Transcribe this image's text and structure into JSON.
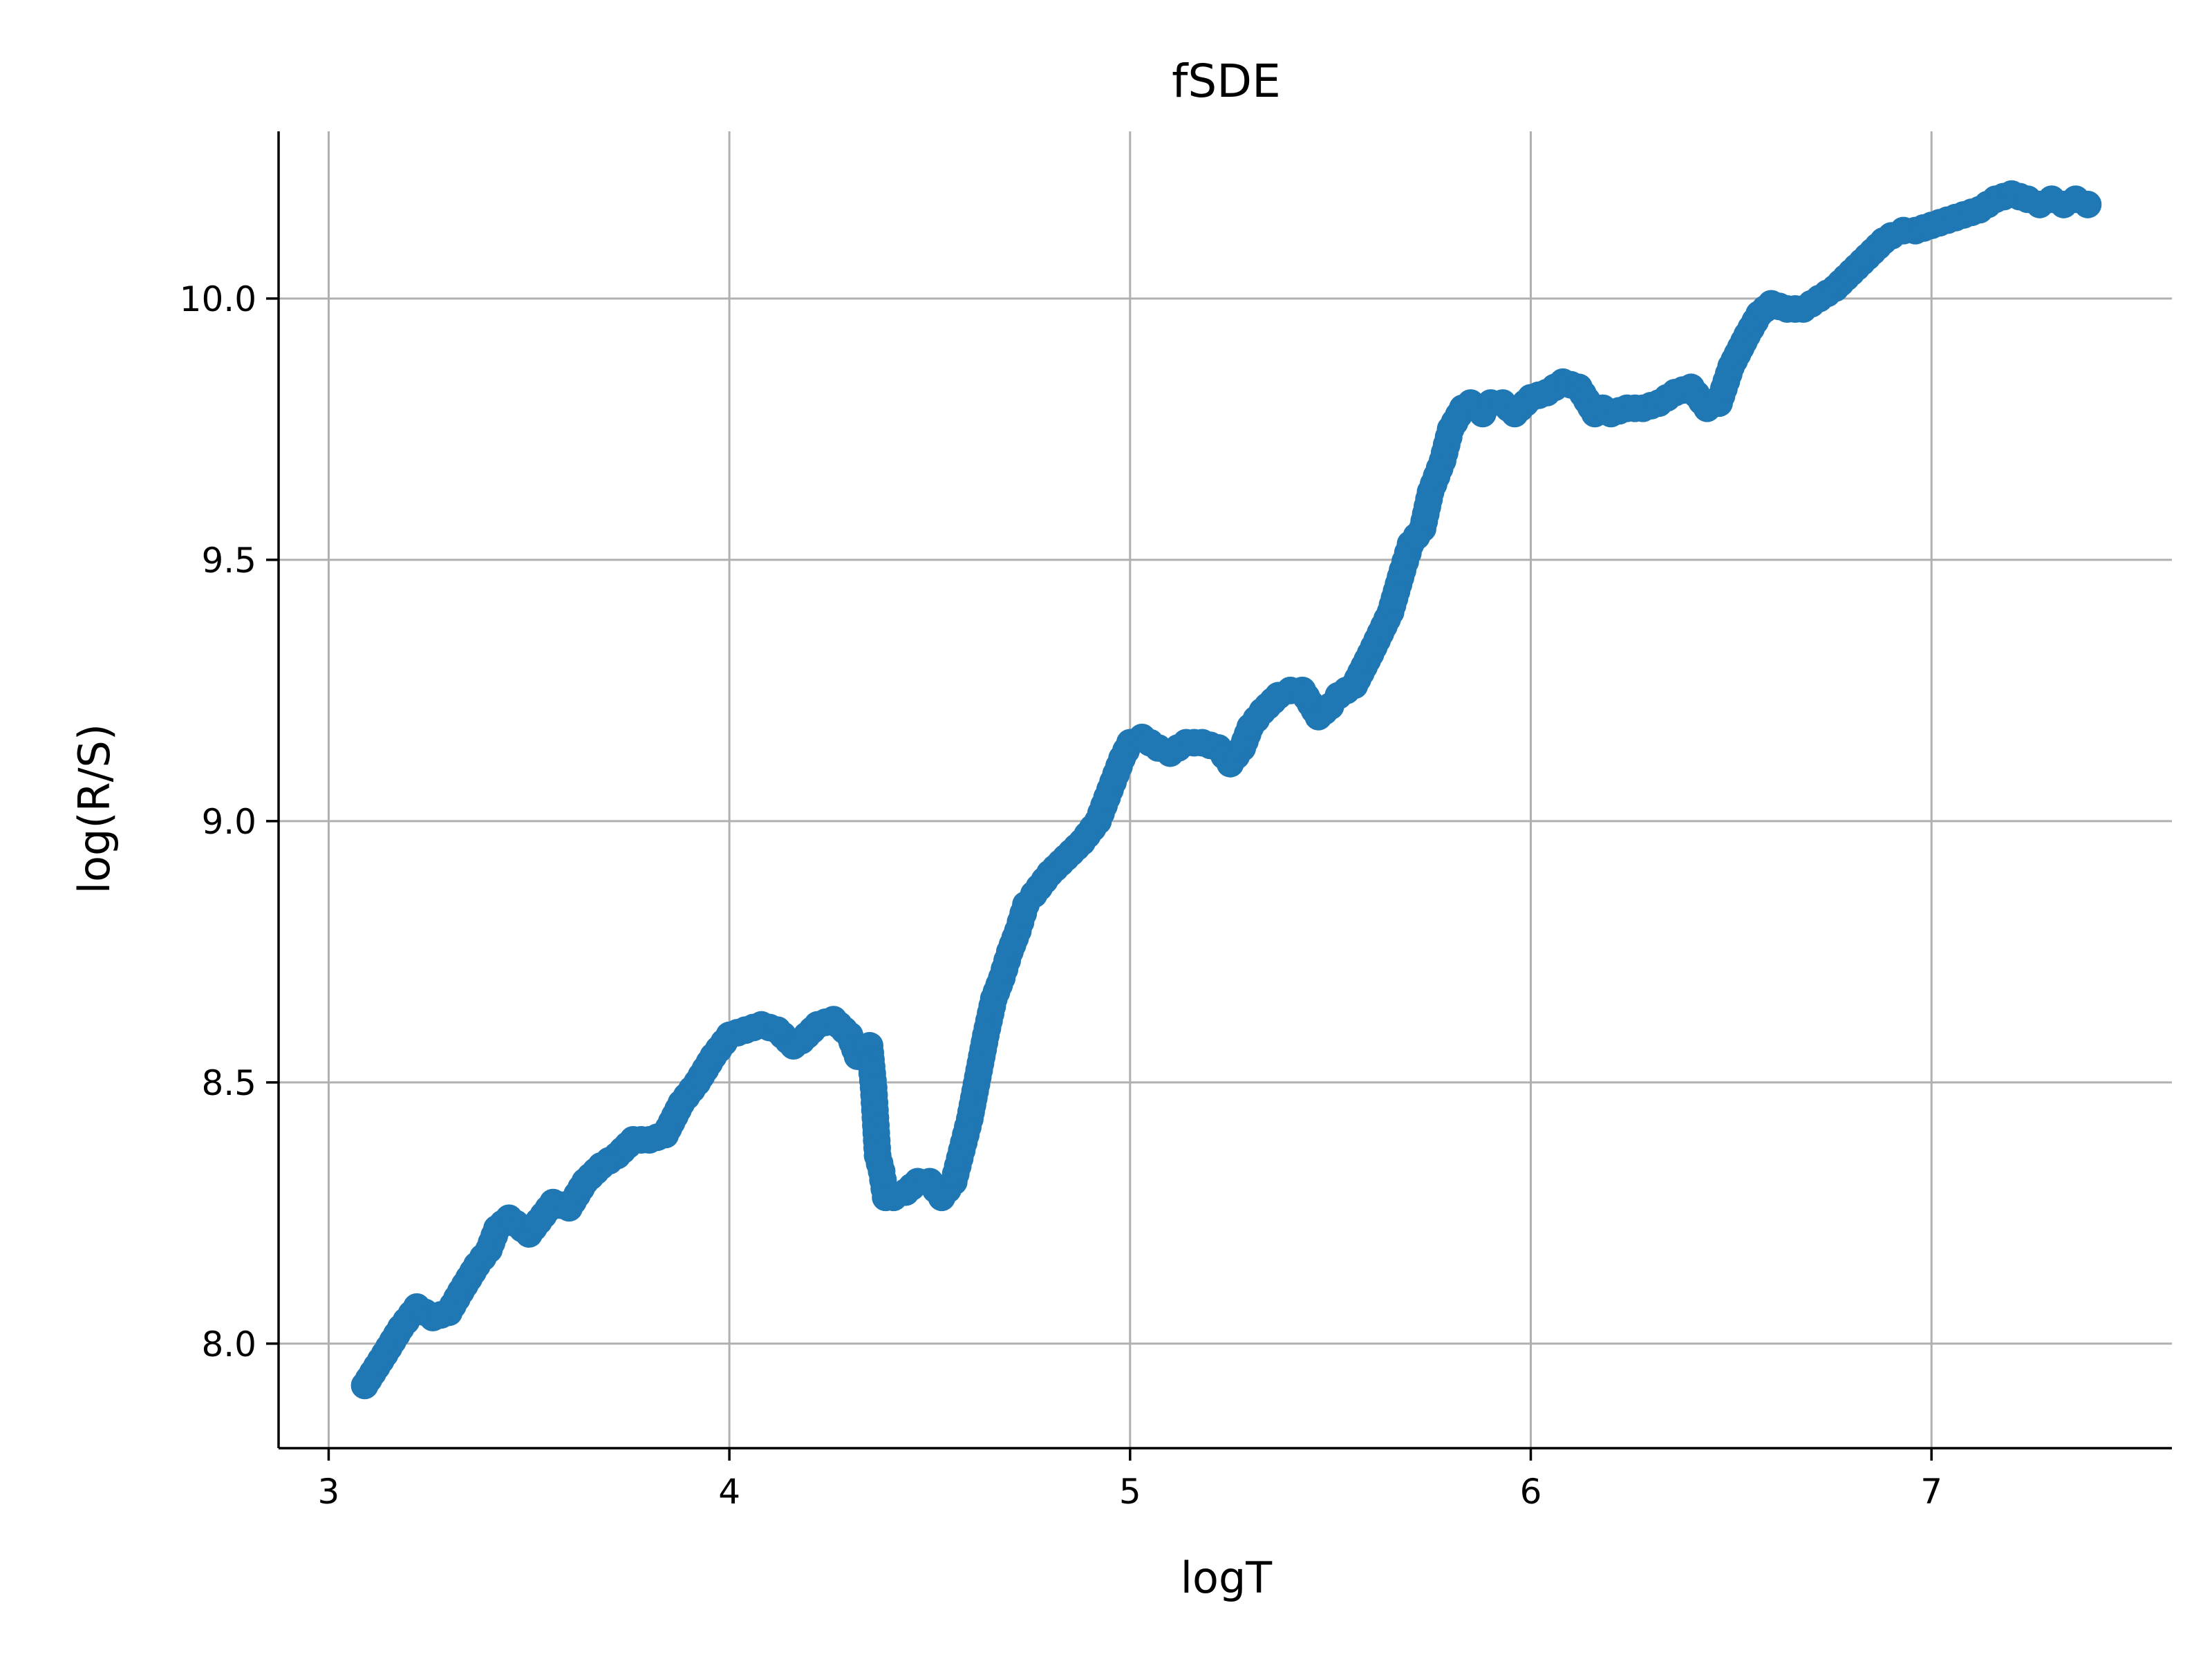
{
  "chart_data": {
    "type": "scatter",
    "title": "fSDE",
    "xlabel": "logT",
    "ylabel": "log(R/S)",
    "xlim": [
      2.875,
      7.6
    ],
    "ylim": [
      7.8,
      10.32
    ],
    "xticks": [
      3,
      4,
      5,
      6,
      7
    ],
    "xtick_labels": [
      "3",
      "4",
      "5",
      "6",
      "7"
    ],
    "yticks": [
      8.0,
      8.5,
      9.0,
      9.5,
      10.0
    ],
    "ytick_labels": [
      "8.0",
      "8.5",
      "9.0",
      "9.5",
      "10.0"
    ],
    "grid": true,
    "marker_color": "#1f77b4",
    "series": [
      {
        "x": [
          3.09,
          3.14,
          3.18,
          3.22,
          3.26,
          3.3,
          3.33,
          3.37,
          3.4,
          3.42,
          3.45,
          3.5,
          3.56,
          3.6,
          3.64,
          3.68,
          3.72,
          3.76,
          3.8,
          3.84,
          3.88,
          3.92,
          3.96,
          4.0,
          4.04,
          4.08,
          4.12,
          4.16,
          4.18,
          4.22,
          4.26,
          4.3,
          4.32,
          4.35,
          4.36,
          4.37,
          4.38,
          4.39,
          4.41,
          4.44,
          4.47,
          4.5,
          4.53,
          4.56,
          4.58,
          4.6,
          4.62,
          4.64,
          4.66,
          4.68,
          4.7,
          4.72,
          4.74,
          4.76,
          4.8,
          4.84,
          4.88,
          4.92,
          4.95,
          4.98,
          5.0,
          5.03,
          5.07,
          5.1,
          5.14,
          5.18,
          5.22,
          5.25,
          5.28,
          5.3,
          5.33,
          5.37,
          5.4,
          5.43,
          5.47,
          5.5,
          5.52,
          5.56,
          5.6,
          5.65,
          5.68,
          5.7,
          5.73,
          5.75,
          5.78,
          5.8,
          5.83,
          5.85,
          5.88,
          5.9,
          5.93,
          5.96,
          6.0,
          6.04,
          6.08,
          6.12,
          6.16,
          6.18,
          6.2,
          6.24,
          6.28,
          6.32,
          6.36,
          6.4,
          6.44,
          6.47,
          6.5,
          6.54,
          6.57,
          6.6,
          6.64,
          6.68,
          6.72,
          6.76,
          6.8,
          6.84,
          6.88,
          6.9,
          6.93,
          6.96,
          7.0,
          7.04,
          7.08,
          7.12,
          7.16,
          7.2,
          7.24,
          7.27,
          7.3,
          7.33,
          7.36,
          7.39
        ],
        "y": [
          7.92,
          7.98,
          8.03,
          8.07,
          8.05,
          8.06,
          8.1,
          8.15,
          8.18,
          8.22,
          8.24,
          8.21,
          8.27,
          8.26,
          8.31,
          8.34,
          8.36,
          8.39,
          8.39,
          8.4,
          8.46,
          8.5,
          8.55,
          8.59,
          8.6,
          8.61,
          8.6,
          8.57,
          8.58,
          8.61,
          8.62,
          8.59,
          8.55,
          8.57,
          8.49,
          8.36,
          8.33,
          8.28,
          8.28,
          8.29,
          8.31,
          8.31,
          8.28,
          8.31,
          8.37,
          8.43,
          8.51,
          8.59,
          8.66,
          8.7,
          8.75,
          8.79,
          8.84,
          8.86,
          8.9,
          8.93,
          8.96,
          9.0,
          9.06,
          9.12,
          9.15,
          9.16,
          9.14,
          9.13,
          9.15,
          9.15,
          9.14,
          9.11,
          9.14,
          9.18,
          9.21,
          9.24,
          9.25,
          9.25,
          9.2,
          9.22,
          9.24,
          9.26,
          9.32,
          9.4,
          9.48,
          9.53,
          9.56,
          9.63,
          9.69,
          9.75,
          9.79,
          9.8,
          9.78,
          9.8,
          9.8,
          9.78,
          9.81,
          9.82,
          9.84,
          9.83,
          9.78,
          9.79,
          9.78,
          9.79,
          9.79,
          9.8,
          9.82,
          9.83,
          9.79,
          9.8,
          9.87,
          9.93,
          9.97,
          9.99,
          9.98,
          9.98,
          10.0,
          10.02,
          10.05,
          10.08,
          10.11,
          10.12,
          10.13,
          10.13,
          10.14,
          10.15,
          10.16,
          10.17,
          10.19,
          10.2,
          10.19,
          10.18,
          10.19,
          10.18,
          10.19,
          10.18
        ]
      }
    ]
  }
}
